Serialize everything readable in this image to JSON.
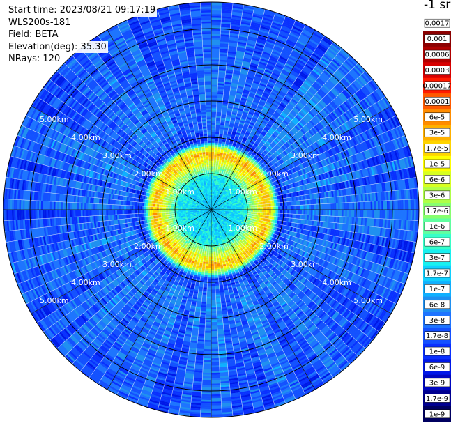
{
  "header": {
    "start_time": "Start time: 2023/08/21 09:17:19",
    "instrument": "WLS200s-181",
    "field": "Field: BETA",
    "elevation": "Elevation(deg): 35.30",
    "nrays": "NRays: 120"
  },
  "colorbar": {
    "unit": "-1 sr",
    "labels": [
      "0.0017",
      "0.001",
      "0.0006",
      "0.0003",
      "0.00017",
      "0.0001",
      "6e-5",
      "3e-5",
      "1.7e-5",
      "1e-5",
      "6e-6",
      "3e-6",
      "1.7e-6",
      "1e-6",
      "6e-7",
      "3e-7",
      "1.7e-7",
      "1e-7",
      "6e-8",
      "3e-8",
      "1.7e-8",
      "1e-8",
      "6e-9",
      "3e-9",
      "1.7e-9",
      "1e-9"
    ]
  },
  "chart_data": {
    "type": "heatmap",
    "projection": "polar-ppi",
    "field": "BETA",
    "nrays": 120,
    "elevation_deg": 35.3,
    "range_rings_km": [
      1,
      2,
      3,
      4,
      5
    ],
    "range_labels": {
      "1": "1.00km",
      "2": "2.00km",
      "3": "3.00km",
      "4": "4.00km",
      "5": "5.00km"
    },
    "max_range_km": 5.75,
    "radial_lines_deg": [
      0,
      30,
      60,
      90,
      120,
      150,
      180,
      210,
      240,
      270,
      300,
      330
    ],
    "color_scale": "log",
    "range_profile": [
      {
        "range_km": 0.0,
        "value": 1.7e-07
      },
      {
        "range_km": 0.9,
        "value": 3e-07
      },
      {
        "range_km": 1.3,
        "value": 6e-06
      },
      {
        "range_km": 1.55,
        "value": 3e-05
      },
      {
        "range_km": 1.7,
        "value": 6e-06
      },
      {
        "range_km": 1.9,
        "value": 1e-08
      },
      {
        "range_km": 2.4,
        "value": 3e-08
      },
      {
        "range_km": 5.75,
        "value": 1.7e-08
      }
    ]
  }
}
